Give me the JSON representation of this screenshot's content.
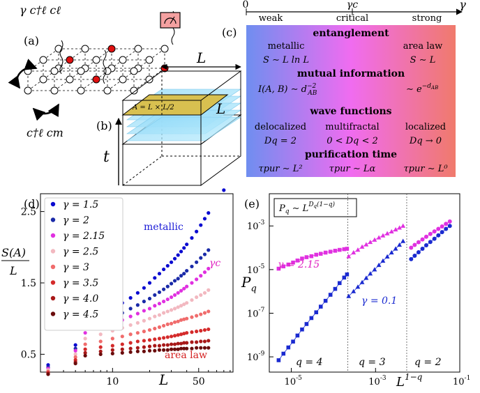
{
  "panel_a": {
    "label": "(a)",
    "measure_op": "γ c†ℓ cℓ",
    "hop_op": "c†ℓ cm"
  },
  "panel_b": {
    "label": "(b)",
    "slab_label": "A = L × L/2",
    "dim_L_top": "L",
    "dim_L_side": "L",
    "time_label": "t"
  },
  "panel_c": {
    "label": "(c)",
    "axis": {
      "left": "0",
      "mid": "γc",
      "right": "γ"
    },
    "regimes": [
      "weak",
      "critical",
      "strong"
    ],
    "rows": [
      {
        "heading": "entanglement",
        "cells": [
          [
            "metallic",
            "S ∼ L ln L"
          ],
          [
            "",
            ""
          ],
          [
            "area law",
            "S ∼ L"
          ]
        ]
      },
      {
        "heading": "mutual information",
        "cells": [
          [
            "I(A, B) ∼ d",
            ""
          ],
          [
            "",
            ""
          ],
          [
            "∼ e",
            ""
          ]
        ]
      },
      {
        "heading": "wave functions",
        "cells": [
          [
            "delocalized",
            "Dq = 2"
          ],
          [
            "multifractal",
            "0 < Dq < 2"
          ],
          [
            "localized",
            "Dq → 0"
          ]
        ]
      },
      {
        "heading": "purification time",
        "cells": [
          [
            "τpur ∼ L²",
            ""
          ],
          [
            "τpur ∼ Lα",
            ""
          ],
          [
            "τpur ∼ L⁰",
            ""
          ]
        ]
      }
    ],
    "colors": {
      "weak": "#6f8ef0",
      "critical": "#f06cf0",
      "strong": "#f07a6c"
    }
  },
  "panel_d": {
    "label": "(d)",
    "xlabel": "L",
    "ylabel_num": "S(A)",
    "ylabel_den": "L",
    "annot_metallic": "metallic",
    "annot_area": "area law",
    "annot_gc": "γc",
    "annot_colors": {
      "metallic": "#1a1ad6",
      "area": "#d42020",
      "gc": "#e020c0"
    }
  },
  "panel_e": {
    "label": "(e)",
    "xlabel": "L^(1−q)",
    "ylabel": "Pq",
    "formula": "Pq ∼ L^(Dq(1−q))",
    "region_labels": [
      "q = 4",
      "q = 3",
      "q = 2"
    ],
    "annot_215": "γ = 2.15",
    "annot_01": "γ = 0.1"
  },
  "chart_data": [
    {
      "type": "scatter",
      "xscale": "log",
      "xlabel": "L",
      "ylabel": "S(A)/L",
      "xlim": [
        2.6,
        95
      ],
      "ylim": [
        0.25,
        2.75
      ],
      "x_ticks": [
        10,
        50
      ],
      "y_ticks": [
        0.5,
        1.5,
        2.5
      ],
      "legend_position": "top-left",
      "x": [
        3,
        5,
        6,
        8,
        10,
        12,
        14,
        16,
        18,
        20,
        22,
        24,
        26,
        28,
        30,
        32,
        34,
        36,
        38,
        40,
        44,
        48,
        52,
        56,
        60
      ],
      "extra_point": {
        "series": "γ = 1.5",
        "x": 80,
        "y": 2.8
      },
      "series": [
        {
          "name": "γ = 1.5",
          "color": "#0a0ad0",
          "values": [
            0.35,
            0.63,
            0.98,
            1.07,
            1.15,
            1.22,
            1.29,
            1.36,
            1.43,
            1.5,
            1.57,
            1.63,
            1.69,
            1.74,
            1.79,
            1.84,
            1.89,
            1.94,
            1.99,
            2.04,
            2.13,
            2.22,
            2.31,
            2.4,
            2.48
          ]
        },
        {
          "name": "γ = 2",
          "color": "#1a2aa8",
          "values": [
            0.32,
            0.58,
            0.87,
            0.95,
            1.02,
            1.08,
            1.14,
            1.19,
            1.24,
            1.28,
            1.33,
            1.37,
            1.41,
            1.45,
            1.49,
            1.53,
            1.56,
            1.6,
            1.63,
            1.67,
            1.73,
            1.79,
            1.85,
            1.9,
            1.96
          ]
        },
        {
          "name": "γ = 2.15",
          "color": "#e030e0",
          "values": [
            0.3,
            0.55,
            0.8,
            0.87,
            0.93,
            0.98,
            1.03,
            1.07,
            1.11,
            1.14,
            1.18,
            1.21,
            1.24,
            1.27,
            1.3,
            1.33,
            1.36,
            1.39,
            1.42,
            1.45,
            1.5,
            1.55,
            1.6,
            1.65,
            1.7
          ]
        },
        {
          "name": "γ = 2.5",
          "color": "#f2b8c0",
          "values": [
            0.28,
            0.5,
            0.72,
            0.78,
            0.83,
            0.87,
            0.91,
            0.94,
            0.97,
            1.0,
            1.03,
            1.05,
            1.08,
            1.1,
            1.12,
            1.14,
            1.16,
            1.18,
            1.2,
            1.22,
            1.26,
            1.3,
            1.33,
            1.36,
            1.4
          ]
        },
        {
          "name": "γ = 3",
          "color": "#f06c6c",
          "values": [
            0.26,
            0.46,
            0.64,
            0.68,
            0.72,
            0.75,
            0.78,
            0.8,
            0.82,
            0.84,
            0.86,
            0.88,
            0.9,
            0.92,
            0.93,
            0.95,
            0.96,
            0.98,
            0.99,
            1.0,
            1.02,
            1.04,
            1.06,
            1.08,
            1.1
          ]
        },
        {
          "name": "γ = 3.5",
          "color": "#d42a2a",
          "values": [
            0.24,
            0.42,
            0.57,
            0.6,
            0.62,
            0.64,
            0.66,
            0.68,
            0.69,
            0.7,
            0.71,
            0.72,
            0.73,
            0.74,
            0.75,
            0.76,
            0.77,
            0.78,
            0.79,
            0.8,
            0.81,
            0.82,
            0.83,
            0.84,
            0.85
          ]
        },
        {
          "name": "γ = 4.0",
          "color": "#a81818",
          "values": [
            0.23,
            0.39,
            0.52,
            0.54,
            0.56,
            0.57,
            0.58,
            0.59,
            0.6,
            0.61,
            0.62,
            0.62,
            0.63,
            0.63,
            0.64,
            0.64,
            0.65,
            0.65,
            0.66,
            0.66,
            0.67,
            0.67,
            0.68,
            0.68,
            0.69
          ]
        },
        {
          "name": "γ = 4.5",
          "color": "#6a0c0c",
          "values": [
            0.22,
            0.37,
            0.48,
            0.5,
            0.51,
            0.52,
            0.53,
            0.54,
            0.54,
            0.55,
            0.55,
            0.56,
            0.56,
            0.56,
            0.57,
            0.57,
            0.57,
            0.58,
            0.58,
            0.58,
            0.58,
            0.59,
            0.59,
            0.59,
            0.59
          ]
        }
      ]
    },
    {
      "type": "scatter",
      "xscale": "log",
      "yscale": "log",
      "xlabel": "L^(1−q)",
      "ylabel": "Pq",
      "xlim": [
        3e-06,
        0.1
      ],
      "ylim": [
        2e-10,
        0.03
      ],
      "x_ticks": [
        "10^-5",
        "10^-3",
        "10^-1"
      ],
      "y_ticks": [
        "10^-9",
        "10^-7",
        "10^-5",
        "10^-3"
      ],
      "region_dividers_x": [
        0.00022,
        0.0055
      ],
      "series": [
        {
          "name": "γ = 2.15 (q = 4)",
          "color": "#e030e0",
          "marker": "square",
          "x": [
            5e-06,
            6.5e-06,
            8.5e-06,
            1.1e-05,
            1.4e-05,
            1.8e-05,
            2.3e-05,
            3e-05,
            3.9e-05,
            5e-05,
            6.5e-05,
            8.5e-05,
            0.00011,
            0.00014,
            0.00018,
            0.00021
          ],
          "y": [
            1.1e-05,
            1.4e-05,
            1.7e-05,
            2.1e-05,
            2.6e-05,
            3.2e-05,
            3.7e-05,
            4.1e-05,
            4.8e-05,
            5.3e-05,
            6e-05,
            6.6e-05,
            7.3e-05,
            8e-05,
            8.6e-05,
            9e-05
          ]
        },
        {
          "name": "γ = 2.15 (q = 3)",
          "color": "#e030e0",
          "marker": "triangle",
          "x": [
            0.00023,
            0.0003,
            0.00038,
            0.00048,
            0.0006,
            0.00075,
            0.00095,
            0.0012,
            0.0015,
            0.0019,
            0.0024,
            0.003,
            0.0037,
            0.0045
          ],
          "y": [
            4e-05,
            6e-05,
            8e-05,
            0.00011,
            0.00014,
            0.00018,
            0.00023,
            0.00029,
            0.00036,
            0.00045,
            0.00055,
            0.00068,
            0.00082,
            0.001
          ]
        },
        {
          "name": "γ = 2.15 (q = 2)",
          "color": "#e030e0",
          "marker": "circle",
          "x": [
            0.007,
            0.0085,
            0.0105,
            0.013,
            0.016,
            0.02,
            0.025,
            0.031,
            0.038,
            0.047,
            0.058
          ],
          "y": [
            0.0001,
            0.000135,
            0.00018,
            0.00024,
            0.00032,
            0.00043,
            0.00056,
            0.00073,
            0.00095,
            0.00125,
            0.0016
          ]
        },
        {
          "name": "γ = 0.1 (q = 4)",
          "color": "#1a2ad0",
          "marker": "square",
          "x": [
            5e-06,
            6.5e-06,
            8.5e-06,
            1.1e-05,
            1.4e-05,
            1.8e-05,
            2.3e-05,
            3e-05,
            3.9e-05,
            5e-05,
            6.5e-05,
            8.5e-05,
            0.00011,
            0.00014,
            0.00018,
            0.00021
          ],
          "y": [
            7e-10,
            1.4e-09,
            2.7e-09,
            5e-09,
            9.5e-09,
            1.8e-08,
            3.2e-08,
            6e-08,
            1.1e-07,
            2e-07,
            3.7e-07,
            7e-07,
            1.3e-06,
            2.4e-06,
            4.3e-06,
            6e-06
          ]
        },
        {
          "name": "γ = 0.1 (q = 3)",
          "color": "#1a2ad0",
          "marker": "triangle",
          "x": [
            0.00023,
            0.0003,
            0.00038,
            0.00048,
            0.0006,
            0.00075,
            0.00095,
            0.0012,
            0.0015,
            0.0019,
            0.0024,
            0.003,
            0.0037,
            0.0045
          ],
          "y": [
            6e-07,
            1e-06,
            1.6e-06,
            2.6e-06,
            4.1e-06,
            6.5e-06,
            1e-05,
            1.6e-05,
            2.5e-05,
            3.9e-05,
            6e-05,
            9e-05,
            0.000135,
            0.0002
          ]
        },
        {
          "name": "γ = 0.1 (q = 2)",
          "color": "#1a2ad0",
          "marker": "circle",
          "x": [
            0.007,
            0.0085,
            0.0105,
            0.013,
            0.016,
            0.02,
            0.025,
            0.031,
            0.038,
            0.047,
            0.058
          ],
          "y": [
            3e-05,
            4.3e-05,
            6.2e-05,
            9e-05,
            0.00013,
            0.000185,
            0.00026,
            0.00037,
            0.00052,
            0.00073,
            0.001
          ]
        }
      ]
    }
  ]
}
